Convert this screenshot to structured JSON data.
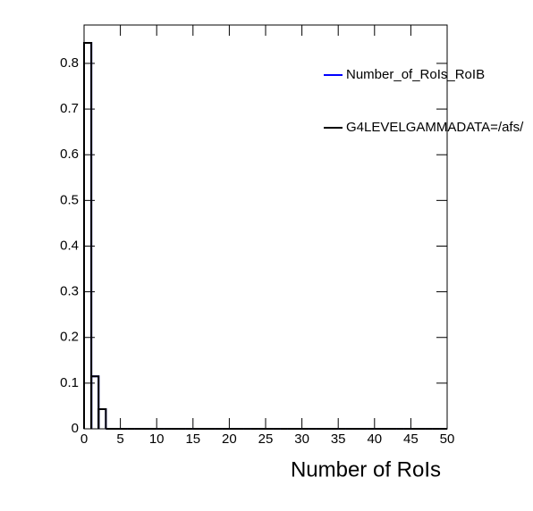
{
  "chart_data": {
    "type": "histogram",
    "x_label": "Number of RoIs",
    "bins": [
      0,
      1,
      2,
      3,
      4,
      5,
      6,
      7,
      8,
      9,
      10,
      11,
      12,
      13,
      14,
      15,
      16,
      17,
      18,
      19,
      20,
      21,
      22,
      23,
      24,
      25,
      26,
      27,
      28,
      29,
      30,
      31,
      32,
      33,
      34,
      35,
      36,
      37,
      38,
      39,
      40,
      41,
      42,
      43,
      44,
      45,
      46,
      47,
      48,
      49,
      50
    ],
    "series": [
      {
        "name": "Number_of_RoIs_RoIB",
        "color": "#0000ff",
        "values": [
          0.845,
          0.115,
          0.043,
          0,
          0,
          0,
          0,
          0,
          0,
          0,
          0,
          0,
          0,
          0,
          0,
          0,
          0,
          0,
          0,
          0,
          0,
          0,
          0,
          0,
          0,
          0,
          0,
          0,
          0,
          0,
          0,
          0,
          0,
          0,
          0,
          0,
          0,
          0,
          0,
          0,
          0,
          0,
          0,
          0,
          0,
          0,
          0,
          0,
          0,
          0
        ]
      },
      {
        "name": "G4LEVELGAMMADATA=/afs/",
        "color": "#000000",
        "values": [
          0.845,
          0.115,
          0.043,
          0,
          0,
          0,
          0,
          0,
          0,
          0,
          0,
          0,
          0,
          0,
          0,
          0,
          0,
          0,
          0,
          0,
          0,
          0,
          0,
          0,
          0,
          0,
          0,
          0,
          0,
          0,
          0,
          0,
          0,
          0,
          0,
          0,
          0,
          0,
          0,
          0,
          0,
          0,
          0,
          0,
          0,
          0,
          0,
          0,
          0,
          0
        ]
      }
    ],
    "xlim": [
      0,
      50
    ],
    "xticks": [
      0,
      5,
      10,
      15,
      20,
      25,
      30,
      35,
      40,
      45,
      50
    ],
    "ylim": [
      0,
      0.884
    ],
    "yticks": [
      0,
      0.1,
      0.2,
      0.3,
      0.4,
      0.5,
      0.6,
      0.7,
      0.8
    ]
  }
}
